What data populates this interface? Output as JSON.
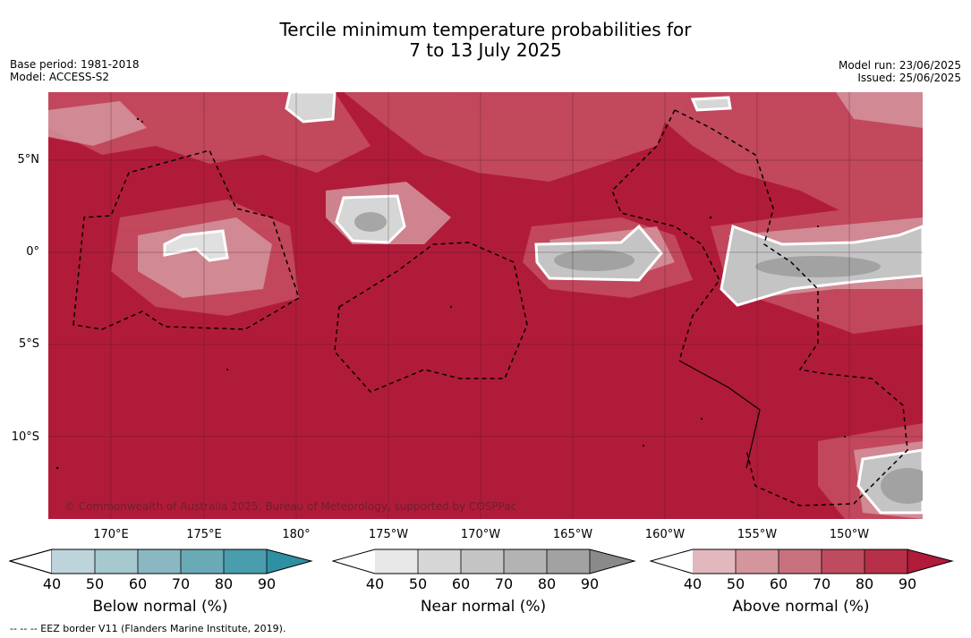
{
  "title": {
    "line1": "Tercile minimum temperature probabilities for",
    "line2": "7 to 13 July 2025"
  },
  "meta": {
    "base_period": "Base period: 1981-2018",
    "model": "Model: ACCESS-S2",
    "model_run": "Model run: 23/06/2025",
    "issued": "Issued: 25/06/2025"
  },
  "map": {
    "lat_labels": [
      "5°N",
      "0°",
      "5°S",
      "10°S"
    ],
    "lon_labels": [
      "170°E",
      "175°E",
      "180°",
      "175°W",
      "170°W",
      "165°W",
      "160°W",
      "155°W",
      "150°W"
    ],
    "copyright": "© Commonwealth of Australia 2025, Bureau of Meteorology, supported by COSPPac",
    "colors": {
      "above_base": "#b11b3a",
      "near_base": "#a6a6a6"
    }
  },
  "colorbars": [
    {
      "label": "Below normal (%)",
      "ticks": [
        "40",
        "50",
        "60",
        "70",
        "80",
        "90"
      ],
      "colors": [
        "#bdd4db",
        "#a6c8cf",
        "#8ab8c2",
        "#6aaab7",
        "#4a9dad",
        "#2f8fa3"
      ]
    },
    {
      "label": "Near normal (%)",
      "ticks": [
        "40",
        "50",
        "60",
        "70",
        "80",
        "90"
      ],
      "colors": [
        "#e8e8e8",
        "#d6d6d6",
        "#c4c4c4",
        "#b3b3b3",
        "#a2a2a2",
        "#8a8a8a"
      ]
    },
    {
      "label": "Above normal (%)",
      "ticks": [
        "40",
        "50",
        "60",
        "70",
        "80",
        "90"
      ],
      "colors": [
        "#e2b8be",
        "#d4959d",
        "#c9707d",
        "#bf4c5e",
        "#b62f46",
        "#b11b3a"
      ]
    }
  ],
  "footnote": "--  --  -- EEZ border V11 (Flanders Marine Institute, 2019)."
}
